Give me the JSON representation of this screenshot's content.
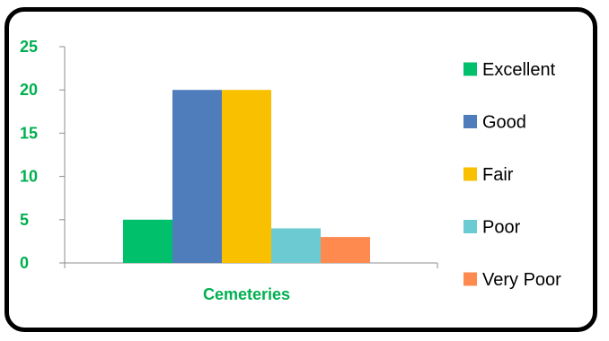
{
  "chart_data": {
    "type": "bar",
    "categories": [
      "Cemeteries"
    ],
    "series": [
      {
        "name": "Excellent",
        "values": [
          5
        ],
        "color": "#00c06b"
      },
      {
        "name": "Good",
        "values": [
          20
        ],
        "color": "#4f7dbb"
      },
      {
        "name": "Fair",
        "values": [
          20
        ],
        "color": "#f9c000"
      },
      {
        "name": "Poor",
        "values": [
          4
        ],
        "color": "#6ccad2"
      },
      {
        "name": "Very Poor",
        "values": [
          3
        ],
        "color": "#ff8a50"
      }
    ],
    "title": "",
    "xlabel": "",
    "ylabel": "",
    "ylim": [
      0,
      25
    ],
    "yticks": [
      "0",
      "5",
      "10",
      "15",
      "20",
      "25"
    ],
    "grid": false,
    "legend_position": "right",
    "label_color": "#00b050"
  }
}
